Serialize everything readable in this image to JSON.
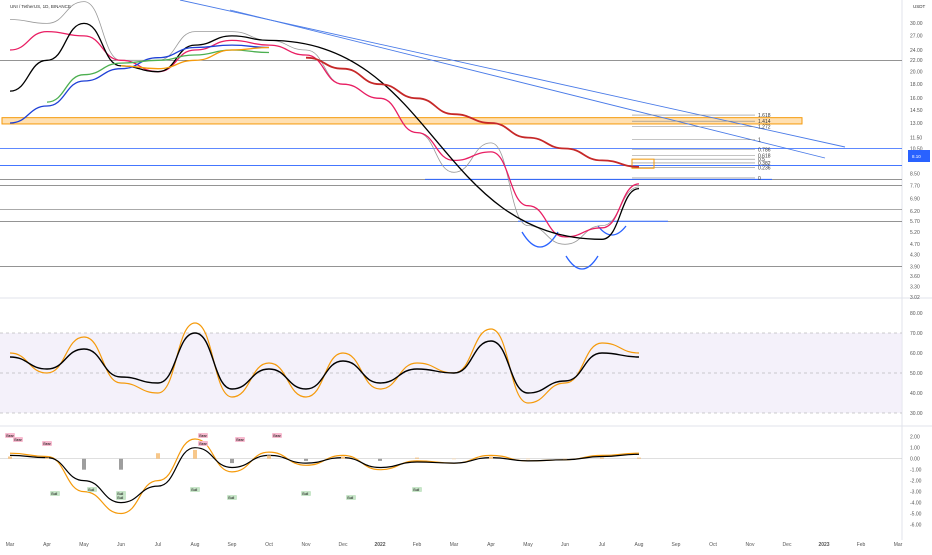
{
  "header": {
    "symbol": "UNI / TetherUS, 1D, BINANCE",
    "price_unit": "USDT",
    "price_badge": "8.10"
  },
  "chart_data": [
    {
      "type": "line",
      "panel": "price",
      "y_scale": "log",
      "ylim": [
        3.15,
        33.0
      ],
      "x": [
        "Mar",
        "Apr",
        "May",
        "Jun",
        "Jul",
        "Aug",
        "Sep",
        "Oct",
        "Nov",
        "Dec",
        "2022",
        "Feb",
        "Mar",
        "Apr",
        "May",
        "Jun",
        "Jul",
        "Aug",
        "Sep",
        "Oct",
        "Nov",
        "Dec",
        "2023",
        "Feb",
        "Mar"
      ],
      "yticks": [
        30.0,
        27.0,
        24.0,
        22.0,
        20.0,
        18.0,
        16.0,
        14.5,
        13.0,
        11.5,
        10.5,
        9.5,
        8.5,
        7.7,
        6.9,
        6.2,
        5.7,
        5.2,
        4.7,
        4.3,
        3.9,
        3.6,
        3.3,
        3.02
      ],
      "series": [
        {
          "name": "price",
          "color": "#9a9a9a",
          "values": [
            31,
            30,
            36,
            22,
            22,
            28,
            28,
            26,
            24,
            18,
            16,
            12,
            8.6,
            11.0,
            5.5,
            4.7,
            5.5,
            7.6,
            null,
            null,
            null,
            null,
            null,
            null,
            null
          ]
        },
        {
          "name": "ma_short",
          "color": "#e91e63",
          "values": [
            24,
            28,
            27,
            22,
            20,
            24,
            26,
            25,
            23,
            18,
            16,
            12,
            9.5,
            10.2,
            6.5,
            5.0,
            5.4,
            7.8,
            null,
            null,
            null,
            null,
            null,
            null,
            null
          ]
        },
        {
          "name": "ma_black",
          "color": "#000000",
          "values": [
            17,
            22,
            30,
            21,
            20,
            25,
            27,
            26,
            null,
            null,
            null,
            null,
            null,
            null,
            null,
            null,
            4.9,
            7.5,
            null,
            null,
            null,
            null,
            null,
            null,
            null
          ]
        },
        {
          "name": "ma_blue",
          "color": "#1e40d6",
          "values": [
            13.0,
            15.0,
            18.5,
            20.5,
            22.5,
            24.5,
            25.0,
            24.5,
            null,
            null,
            null,
            null,
            null,
            null,
            null,
            null,
            null,
            null,
            null,
            null,
            null,
            null,
            null,
            null,
            null
          ]
        },
        {
          "name": "ma_green",
          "color": "#4caf50",
          "values": [
            null,
            15.5,
            19.5,
            21.5,
            22.0,
            23.0,
            24.0,
            23.5,
            null,
            null,
            null,
            null,
            null,
            null,
            null,
            null,
            null,
            null,
            null,
            null,
            null,
            null,
            null,
            null,
            null
          ]
        },
        {
          "name": "ma_orange",
          "color": "#f59a0b",
          "values": [
            null,
            null,
            null,
            21.0,
            20.5,
            22.0,
            24.0,
            24.5,
            null,
            null,
            null,
            null,
            null,
            null,
            null,
            null,
            null,
            null,
            null,
            null,
            null,
            null,
            null,
            null,
            null
          ]
        },
        {
          "name": "ma_red",
          "color": "#c62828",
          "values": [
            null,
            null,
            null,
            null,
            null,
            null,
            null,
            null,
            22.5,
            20.5,
            18.0,
            16.0,
            14.0,
            13.0,
            11.5,
            10.5,
            9.5,
            9.0,
            null,
            null,
            null,
            null,
            null,
            null,
            null
          ]
        }
      ],
      "horizontal_levels": [
        22.0,
        10.5,
        9.1,
        8.1,
        7.7,
        6.3,
        5.7,
        3.9
      ],
      "resistance_zone": [
        12.9,
        13.6
      ],
      "fib_levels": [
        {
          "label": "1.618",
          "value": 13.9
        },
        {
          "label": "1.414",
          "value": 13.2
        },
        {
          "label": "1.272",
          "value": 12.6
        },
        {
          "label": "1",
          "value": 11.3
        },
        {
          "label": "0.786",
          "value": 10.4
        },
        {
          "label": "0.618",
          "value": 9.9
        },
        {
          "label": "0.5",
          "value": 9.6
        },
        {
          "label": "0.382",
          "value": 9.3
        },
        {
          "label": "0.236",
          "value": 8.95
        },
        {
          "label": "0",
          "value": 8.2
        }
      ]
    },
    {
      "type": "line",
      "panel": "rsi",
      "ylim": [
        25,
        85
      ],
      "yticks": [
        80.0,
        70.0,
        60.0,
        50.0,
        40.0,
        30.0
      ],
      "band": [
        30,
        70
      ],
      "series": [
        {
          "name": "rsi",
          "color": "#f59a0b",
          "values": [
            60,
            50,
            68,
            45,
            40,
            75,
            38,
            55,
            38,
            60,
            42,
            55,
            50,
            72,
            35,
            45,
            65,
            60,
            null,
            null,
            null,
            null,
            null,
            null,
            null
          ]
        },
        {
          "name": "rsi_ma",
          "color": "#000000",
          "values": [
            58,
            52,
            62,
            48,
            45,
            70,
            42,
            52,
            42,
            56,
            45,
            52,
            50,
            66,
            40,
            46,
            60,
            58,
            null,
            null,
            null,
            null,
            null,
            null,
            null
          ]
        }
      ]
    },
    {
      "type": "line",
      "panel": "macd",
      "ylim": [
        -6.5,
        2.8
      ],
      "yticks": [
        2.0,
        1.0,
        0.0,
        -1.0,
        -2.0,
        -3.0,
        -4.0,
        -5.0,
        -6.0
      ],
      "series": [
        {
          "name": "macd",
          "color": "#f59a0b",
          "values": [
            0.5,
            0.2,
            -3.0,
            -5.0,
            -2.0,
            1.8,
            -1.2,
            0.6,
            -0.6,
            0.3,
            -1.0,
            -0.2,
            -0.4,
            0.3,
            -0.2,
            -0.1,
            0.3,
            0.5,
            null,
            null,
            null,
            null,
            null,
            null,
            null
          ]
        },
        {
          "name": "signal",
          "color": "#000000",
          "values": [
            0.3,
            0.1,
            -2.0,
            -4.0,
            -2.5,
            1.0,
            -0.8,
            0.3,
            -0.4,
            0.1,
            -0.8,
            -0.3,
            -0.4,
            0.1,
            -0.2,
            -0.1,
            0.2,
            0.4,
            null,
            null,
            null,
            null,
            null,
            null,
            null
          ]
        }
      ],
      "signals": [
        {
          "type": "Bear",
          "at": "Mar"
        },
        {
          "type": "Bear",
          "at": "Mar"
        },
        {
          "type": "Bear",
          "at": "Apr"
        },
        {
          "type": "Bull",
          "at": "May"
        },
        {
          "type": "Bull",
          "at": "Jun"
        },
        {
          "type": "Bear",
          "at": "Aug"
        },
        {
          "type": "Bull",
          "at": "Aug"
        },
        {
          "type": "Bear",
          "at": "Sep"
        },
        {
          "type": "Bull",
          "at": "Sep"
        },
        {
          "type": "Bear",
          "at": "Oct"
        },
        {
          "type": "Bull",
          "at": "Nov"
        },
        {
          "type": "Bull",
          "at": "Dec"
        },
        {
          "type": "Bull",
          "at": "Feb"
        },
        {
          "type": "Bull",
          "at": "Apr"
        },
        {
          "type": "Bull",
          "at": "Jun"
        },
        {
          "type": "Bear",
          "at": "Aug"
        }
      ]
    }
  ]
}
